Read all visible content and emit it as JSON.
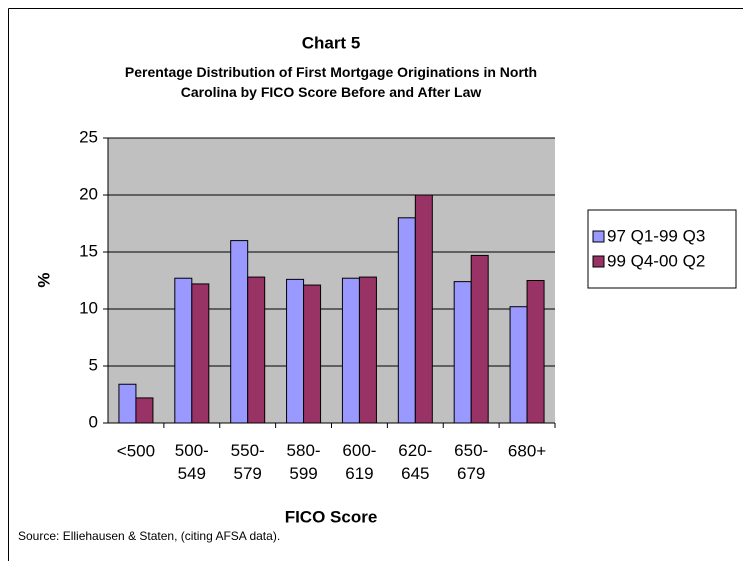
{
  "chart_data": {
    "type": "bar",
    "title": "Chart 5",
    "subtitle": "Perentage Distribution of First Mortgage Originations in North\nCarolina by FICO Score Before and After Law",
    "x_label": "FICO Score",
    "y_label": "%",
    "source": "Source: Elliehausen & Staten, (citing AFSA data).",
    "categories": [
      "<500",
      "500-\n549",
      "550-\n579",
      "580-\n599",
      "600-\n619",
      "620-\n645",
      "650-\n679",
      "680+"
    ],
    "series": [
      {
        "name": "97 Q1-99 Q3",
        "color": "#9999ff",
        "values": [
          3.4,
          12.7,
          16,
          12.6,
          12.7,
          18,
          12.4,
          10.2
        ]
      },
      {
        "name": "99 Q4-00 Q2",
        "color": "#993366",
        "values": [
          2.2,
          12.2,
          12.8,
          12.1,
          12.8,
          20,
          14.7,
          12.5
        ]
      }
    ],
    "ylim": [
      0,
      25
    ],
    "yticks": [
      0,
      5,
      10,
      15,
      20,
      25
    ],
    "grid": true,
    "legend": "right"
  }
}
